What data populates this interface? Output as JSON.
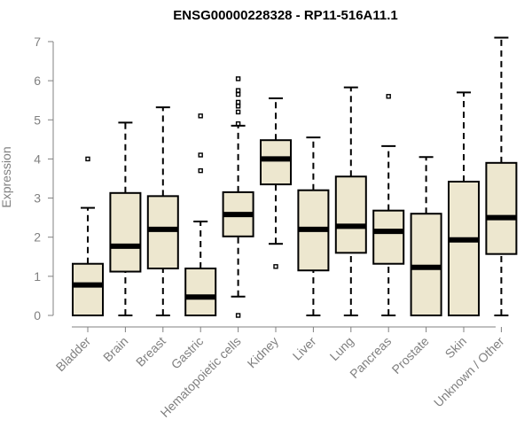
{
  "chart_data": {
    "type": "boxplot",
    "title": "ENSG00000228328 - RP11-516A11.1",
    "xlabel": "",
    "ylabel": "Expression",
    "ylim": [
      0,
      7.2
    ],
    "yticks": [
      0,
      1,
      2,
      3,
      4,
      5,
      6,
      7
    ],
    "box_fill": "#ede7cf",
    "axis_color": "#808080",
    "categories": [
      "Bladder",
      "Brain",
      "Breast",
      "Gastric",
      "Hematopoietic cells",
      "Kidney",
      "Liver",
      "Lung",
      "Pancreas",
      "Prostate",
      "Skin",
      "Unknown / Other"
    ],
    "boxes": [
      {
        "min": 0,
        "q1": 0,
        "median": 0.78,
        "q3": 1.32,
        "max": 2.75,
        "outliers": [
          4.0
        ]
      },
      {
        "min": 0,
        "q1": 1.12,
        "median": 1.77,
        "q3": 3.13,
        "max": 4.93,
        "outliers": []
      },
      {
        "min": 0,
        "q1": 1.2,
        "median": 2.2,
        "q3": 3.05,
        "max": 5.32,
        "outliers": []
      },
      {
        "min": 0,
        "q1": 0,
        "median": 0.47,
        "q3": 1.2,
        "max": 2.4,
        "outliers": [
          3.7,
          4.1,
          5.1
        ]
      },
      {
        "min": 0.48,
        "q1": 2.02,
        "median": 2.58,
        "q3": 3.15,
        "max": 4.85,
        "outliers": [
          0,
          4.9,
          5.2,
          5.35,
          5.45,
          5.65,
          5.75,
          6.05
        ]
      },
      {
        "min": 1.83,
        "q1": 3.35,
        "median": 4.0,
        "q3": 4.48,
        "max": 5.55,
        "outliers": [
          1.25
        ]
      },
      {
        "min": 0,
        "q1": 1.15,
        "median": 2.2,
        "q3": 3.2,
        "max": 4.55,
        "outliers": []
      },
      {
        "min": 0,
        "q1": 1.6,
        "median": 2.28,
        "q3": 3.55,
        "max": 5.83,
        "outliers": []
      },
      {
        "min": 0,
        "q1": 1.32,
        "median": 2.15,
        "q3": 2.68,
        "max": 4.33,
        "outliers": [
          5.6
        ]
      },
      {
        "min": 0,
        "q1": 0,
        "median": 1.23,
        "q3": 2.6,
        "max": 4.05,
        "outliers": []
      },
      {
        "min": 0,
        "q1": 0,
        "median": 1.93,
        "q3": 3.42,
        "max": 5.7,
        "outliers": []
      },
      {
        "min": 0,
        "q1": 1.57,
        "median": 2.5,
        "q3": 3.9,
        "max": 7.1,
        "outliers": []
      }
    ]
  }
}
